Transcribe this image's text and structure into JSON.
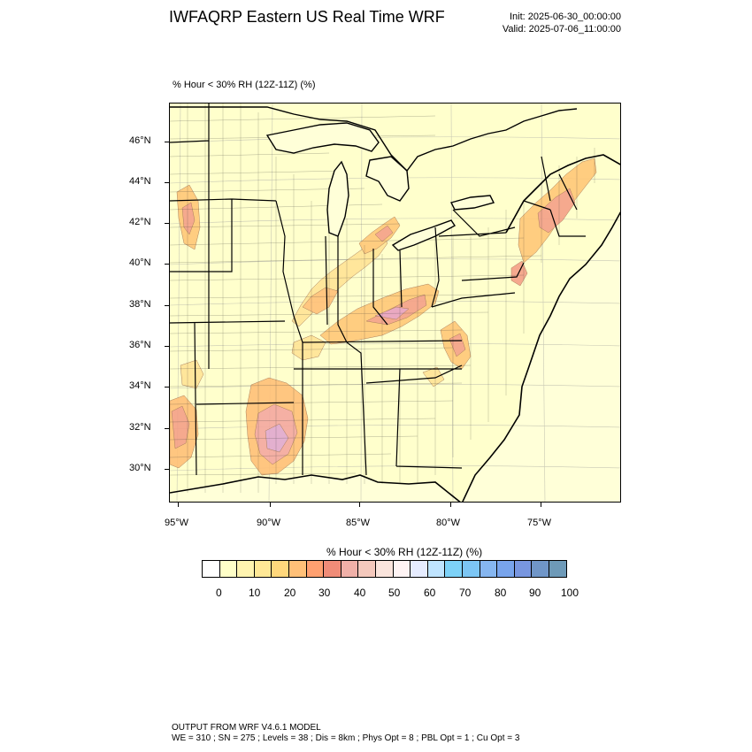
{
  "header": {
    "title": "IWFAQRP Eastern US Real Time WRF",
    "init": "Init: 2025-06-30_00:00:00",
    "valid": "Valid: 2025-07-06_11:00:00"
  },
  "field_label": "% Hour < 30% RH (12Z-11Z)   (%)",
  "map": {
    "background_color": "#ffffcc",
    "lat_labels": [
      "46°N",
      "44°N",
      "42°N",
      "40°N",
      "38°N",
      "36°N",
      "34°N",
      "32°N",
      "30°N"
    ],
    "lon_labels": [
      "95°W",
      "90°W",
      "85°W",
      "80°W",
      "75°W"
    ],
    "shaded_regions": [
      {
        "area": "southeast Iowa",
        "level": 25
      },
      {
        "area": "Illinois / Indiana",
        "level": 20
      },
      {
        "area": "Ohio / Kentucky / West Virginia",
        "level": 30
      },
      {
        "area": "western Virginia / North Carolina",
        "level": 25
      },
      {
        "area": "Mississippi",
        "level": 45
      },
      {
        "area": "east Texas / Louisiana",
        "level": 35
      },
      {
        "area": "southern Michigan",
        "level": 30
      },
      {
        "area": "New York / New England",
        "level": 30
      },
      {
        "area": "New Jersey / Delaware",
        "level": 25
      }
    ]
  },
  "colorbar": {
    "title": "% Hour < 30% RH (12Z-11Z)  (%)",
    "colors": [
      "#ffffff",
      "#ffffc8",
      "#fff4b0",
      "#ffe896",
      "#ffd77c",
      "#ffc078",
      "#ffa070",
      "#f08c78",
      "#f0b0a8",
      "#f4c8bc",
      "#fae4dc",
      "#fff4f4",
      "#e6ecff",
      "#bfe4ff",
      "#7dd2f8",
      "#7cc6f4",
      "#86b6f0",
      "#78a4ec",
      "#7896e0",
      "#7096c8",
      "#6e9ab8"
    ],
    "labels": [
      "0",
      "10",
      "20",
      "30",
      "40",
      "50",
      "60",
      "70",
      "80",
      "90",
      "100"
    ]
  },
  "footer": {
    "line1": "OUTPUT FROM WRF V4.6.1 MODEL",
    "line2": "WE = 310 ; SN = 275 ; Levels = 38 ; Dis = 8km ; Phys Opt = 8 ; PBL Opt = 1 ; Cu Opt = 3"
  }
}
